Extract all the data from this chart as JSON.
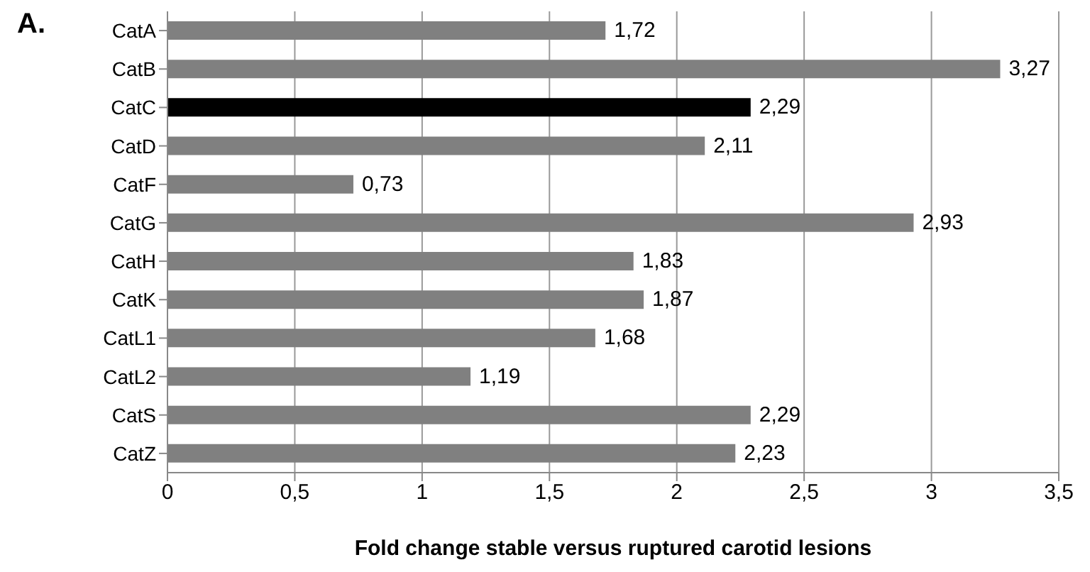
{
  "chart_data": {
    "type": "bar",
    "orientation": "horizontal",
    "xlabel": "Fold change stable versus ruptured carotid lesions",
    "annotations": [
      "A."
    ],
    "categories": [
      "CatA",
      "CatB",
      "CatC",
      "CatD",
      "CatF",
      "CatG",
      "CatH",
      "CatK",
      "CatL1",
      "CatL2",
      "CatS",
      "CatZ"
    ],
    "values": [
      1.72,
      3.27,
      2.29,
      2.11,
      0.73,
      2.93,
      1.83,
      1.87,
      1.68,
      1.19,
      2.29,
      2.23
    ],
    "value_labels": [
      "1,72",
      "3,27",
      "2,29",
      "2,11",
      "0,73",
      "2,93",
      "1,83",
      "1,87",
      "1,68",
      "1,19",
      "2,29",
      "2,23"
    ],
    "colors": [
      "#808080",
      "#808080",
      "#000000",
      "#808080",
      "#808080",
      "#808080",
      "#808080",
      "#808080",
      "#808080",
      "#808080",
      "#808080",
      "#808080"
    ],
    "xlim": [
      0,
      3.5
    ],
    "xticks": [
      0,
      {
        "value": 0.5,
        "label": "0,5"
      },
      1,
      {
        "value": 1.5,
        "label": "1,5"
      },
      2,
      {
        "value": 2.5,
        "label": "2,5"
      },
      3,
      {
        "value": 3.5,
        "label": "3,5"
      }
    ],
    "grid": "x"
  }
}
